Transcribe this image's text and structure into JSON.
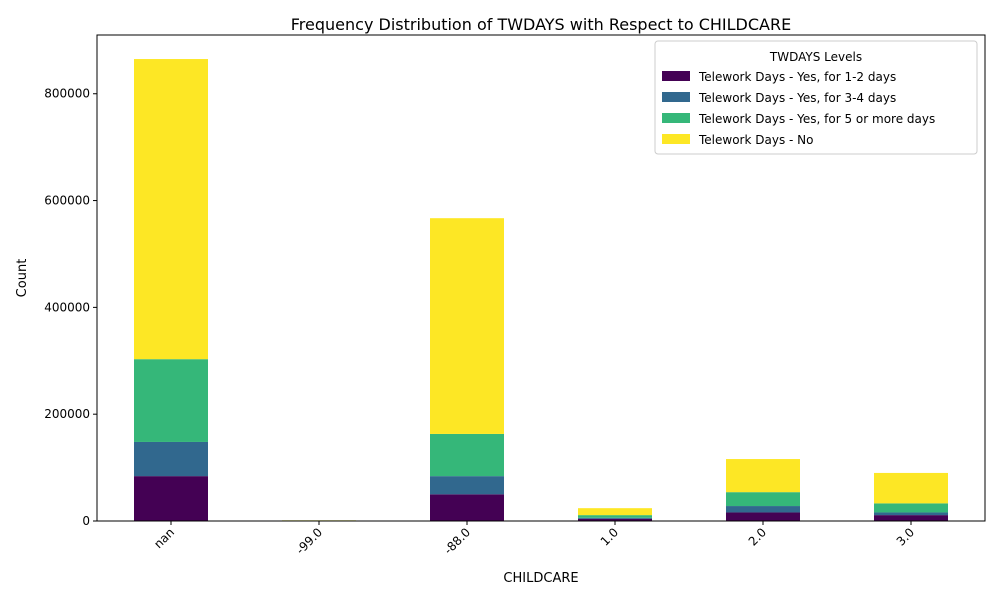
{
  "chart_data": {
    "type": "bar",
    "stacked": true,
    "title": "Frequency Distribution of TWDAYS with Respect to CHILDCARE",
    "xlabel": "CHILDCARE",
    "ylabel": "Count",
    "categories": [
      "nan",
      "-99.0",
      "-88.0",
      "1.0",
      "2.0",
      "3.0"
    ],
    "ylim": [
      0,
      910000
    ],
    "yticks": [
      0,
      200000,
      400000,
      600000,
      800000
    ],
    "legend": {
      "title": "TWDAYS Levels",
      "placement": "top-right"
    },
    "series": [
      {
        "name": "Telework Days - Yes, for 1-2 days",
        "color": "#440154",
        "values": [
          84000,
          500,
          50000,
          4000,
          16000,
          11000
        ]
      },
      {
        "name": "Telework Days - Yes, for 3-4 days",
        "color": "#31688e",
        "values": [
          64000,
          300,
          34000,
          2000,
          12000,
          5000
        ]
      },
      {
        "name": "Telework Days - Yes, for 5 or more days",
        "color": "#35b779",
        "values": [
          155000,
          200,
          79000,
          5000,
          26000,
          17000
        ]
      },
      {
        "name": "Telework Days - No",
        "color": "#fde725",
        "values": [
          562000,
          300,
          404000,
          13000,
          62000,
          57000
        ]
      }
    ]
  }
}
